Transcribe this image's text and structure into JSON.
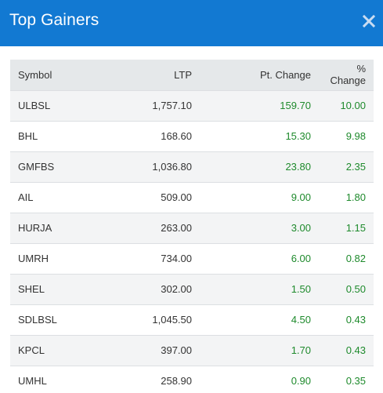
{
  "header": {
    "title": "Top Gainers",
    "close_icon": "close-icon"
  },
  "table": {
    "columns": [
      "Symbol",
      "LTP",
      "Pt. Change",
      "% Change"
    ],
    "rows": [
      {
        "symbol": "ULBSL",
        "ltp": "1,757.10",
        "pt_change": "159.70",
        "pct_change": "10.00"
      },
      {
        "symbol": "BHL",
        "ltp": "168.60",
        "pt_change": "15.30",
        "pct_change": "9.98"
      },
      {
        "symbol": "GMFBS",
        "ltp": "1,036.80",
        "pt_change": "23.80",
        "pct_change": "2.35"
      },
      {
        "symbol": "AIL",
        "ltp": "509.00",
        "pt_change": "9.00",
        "pct_change": "1.80"
      },
      {
        "symbol": "HURJA",
        "ltp": "263.00",
        "pt_change": "3.00",
        "pct_change": "1.15"
      },
      {
        "symbol": "UMRH",
        "ltp": "734.00",
        "pt_change": "6.00",
        "pct_change": "0.82"
      },
      {
        "symbol": "SHEL",
        "ltp": "302.00",
        "pt_change": "1.50",
        "pct_change": "0.50"
      },
      {
        "symbol": "SDLBSL",
        "ltp": "1,045.50",
        "pt_change": "4.50",
        "pct_change": "0.43"
      },
      {
        "symbol": "KPCL",
        "ltp": "397.00",
        "pt_change": "1.70",
        "pct_change": "0.43"
      },
      {
        "symbol": "UMHL",
        "ltp": "258.90",
        "pt_change": "0.90",
        "pct_change": "0.35"
      }
    ]
  },
  "colors": {
    "header_bg": "#1279d2",
    "gain": "#1e8a2c",
    "table_header_bg": "#e5e8ea",
    "row_alt_bg": "#f3f4f5"
  }
}
